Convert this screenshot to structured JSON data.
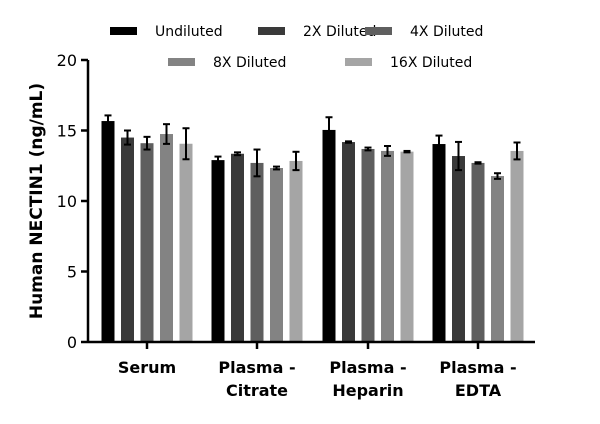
{
  "chart_data": {
    "type": "bar",
    "title": "",
    "xlabel": "",
    "ylabel": "Human NECTIN1 (ng/mL)",
    "ylim": [
      0,
      20
    ],
    "yticks": [
      0,
      5,
      10,
      15,
      20
    ],
    "categories": [
      [
        "Serum"
      ],
      [
        "Plasma -",
        "Citrate"
      ],
      [
        "Plasma -",
        "Heparin"
      ],
      [
        "Plasma -",
        "EDTA"
      ]
    ],
    "legend_position": "top",
    "series": [
      {
        "name": "Undiluted",
        "color": "#000000",
        "values": [
          15.67,
          12.9,
          15.04,
          14.04
        ],
        "errors": [
          0.4,
          0.25,
          0.9,
          0.6
        ]
      },
      {
        "name": "2X Diluted",
        "color": "#3a3a3a",
        "values": [
          14.5,
          13.35,
          14.18,
          13.19
        ],
        "errors": [
          0.5,
          0.1,
          0.05,
          1.0
        ]
      },
      {
        "name": "4X Diluted",
        "color": "#5f5f5f",
        "values": [
          14.1,
          12.7,
          13.69,
          12.7
        ],
        "errors": [
          0.45,
          0.95,
          0.1,
          0.05
        ]
      },
      {
        "name": "8X Diluted",
        "color": "#838383",
        "values": [
          14.75,
          12.34,
          13.55,
          11.77
        ],
        "errors": [
          0.7,
          0.1,
          0.35,
          0.2
        ]
      },
      {
        "name": "16X Diluted",
        "color": "#a5a5a5",
        "values": [
          14.06,
          12.84,
          13.5,
          13.55
        ],
        "errors": [
          1.1,
          0.65,
          0.05,
          0.6
        ]
      }
    ]
  }
}
